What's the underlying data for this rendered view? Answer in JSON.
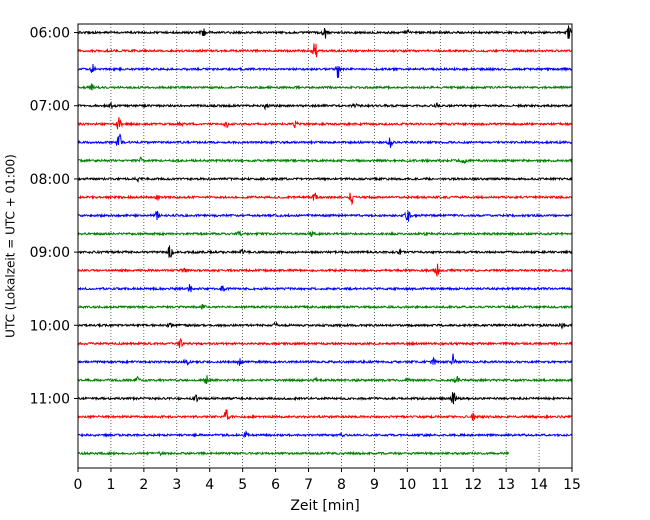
{
  "chart_data": {
    "type": "line",
    "title": "",
    "xlabel": "Zeit  [min]",
    "ylabel": "UTC (Lokalzeit = UTC + 01:00)",
    "xlim": [
      0,
      15
    ],
    "x_ticks": [
      "0",
      "1",
      "2",
      "3",
      "4",
      "5",
      "6",
      "7",
      "8",
      "9",
      "10",
      "11",
      "12",
      "13",
      "14",
      "15"
    ],
    "y_ticks": [
      "06:00",
      "07:00",
      "08:00",
      "09:00",
      "10:00",
      "11:00"
    ],
    "grid": {
      "x": true,
      "y": false
    },
    "row_minutes": 15,
    "start_time": "06:00",
    "colors": [
      "#000000",
      "#ff0000",
      "#0000ff",
      "#008000"
    ],
    "traces": [
      {
        "start": "06:00",
        "color": "#000000",
        "x_end": 15,
        "events": [
          {
            "x": 3.8,
            "amp": 4
          },
          {
            "x": 7.5,
            "amp": 6
          },
          {
            "x": 10.0,
            "amp": 2
          },
          {
            "x": 14.9,
            "amp": 7
          }
        ]
      },
      {
        "start": "06:15",
        "color": "#ff0000",
        "x_end": 15,
        "events": [
          {
            "x": 7.2,
            "amp": 9
          }
        ]
      },
      {
        "start": "06:30",
        "color": "#0000ff",
        "x_end": 15,
        "events": [
          {
            "x": 0.45,
            "amp": 5
          },
          {
            "x": 7.9,
            "amp": 9
          }
        ]
      },
      {
        "start": "06:45",
        "color": "#008000",
        "x_end": 15,
        "events": [
          {
            "x": 0.4,
            "amp": 4
          }
        ]
      },
      {
        "start": "07:00",
        "color": "#000000",
        "x_end": 15,
        "events": [
          {
            "x": 1.0,
            "amp": 3
          },
          {
            "x": 5.7,
            "amp": 4
          },
          {
            "x": 8.4,
            "amp": 3
          },
          {
            "x": 10.9,
            "amp": 2
          }
        ]
      },
      {
        "start": "07:15",
        "color": "#ff0000",
        "x_end": 15,
        "events": [
          {
            "x": 1.25,
            "amp": 9
          },
          {
            "x": 3.1,
            "amp": 3
          },
          {
            "x": 4.5,
            "amp": 4
          },
          {
            "x": 6.6,
            "amp": 3
          }
        ]
      },
      {
        "start": "07:30",
        "color": "#0000ff",
        "x_end": 15,
        "events": [
          {
            "x": 1.25,
            "amp": 11
          },
          {
            "x": 9.5,
            "amp": 6
          }
        ]
      },
      {
        "start": "07:45",
        "color": "#008000",
        "x_end": 15,
        "events": [
          {
            "x": 1.9,
            "amp": 3
          },
          {
            "x": 11.7,
            "amp": 3
          }
        ]
      },
      {
        "start": "08:00",
        "color": "#000000",
        "x_end": 15,
        "events": [
          {
            "x": 1.8,
            "amp": 4
          }
        ]
      },
      {
        "start": "08:15",
        "color": "#ff0000",
        "x_end": 15,
        "events": [
          {
            "x": 2.4,
            "amp": 3
          },
          {
            "x": 7.2,
            "amp": 5
          },
          {
            "x": 8.3,
            "amp": 8
          }
        ]
      },
      {
        "start": "08:30",
        "color": "#0000ff",
        "x_end": 15,
        "events": [
          {
            "x": 2.4,
            "amp": 4
          },
          {
            "x": 10.0,
            "amp": 9
          }
        ]
      },
      {
        "start": "08:45",
        "color": "#008000",
        "x_end": 15,
        "events": [
          {
            "x": 4.9,
            "amp": 2
          },
          {
            "x": 7.1,
            "amp": 2
          },
          {
            "x": 10.6,
            "amp": 2
          }
        ]
      },
      {
        "start": "09:00",
        "color": "#000000",
        "x_end": 15,
        "events": [
          {
            "x": 2.8,
            "amp": 9
          },
          {
            "x": 5.0,
            "amp": 2
          },
          {
            "x": 9.8,
            "amp": 2
          }
        ]
      },
      {
        "start": "09:15",
        "color": "#ff0000",
        "x_end": 15,
        "events": [
          {
            "x": 3.2,
            "amp": 2
          },
          {
            "x": 10.9,
            "amp": 7
          }
        ]
      },
      {
        "start": "09:30",
        "color": "#0000ff",
        "x_end": 15,
        "events": [
          {
            "x": 3.4,
            "amp": 4
          },
          {
            "x": 4.4,
            "amp": 3
          }
        ]
      },
      {
        "start": "09:45",
        "color": "#008000",
        "x_end": 15,
        "events": [
          {
            "x": 3.8,
            "amp": 2
          }
        ]
      },
      {
        "start": "10:00",
        "color": "#000000",
        "x_end": 15,
        "events": [
          {
            "x": 2.8,
            "amp": 3
          },
          {
            "x": 6.0,
            "amp": 2
          },
          {
            "x": 14.7,
            "amp": 2
          }
        ]
      },
      {
        "start": "10:15",
        "color": "#ff0000",
        "x_end": 15,
        "events": [
          {
            "x": 3.1,
            "amp": 4
          }
        ]
      },
      {
        "start": "10:30",
        "color": "#0000ff",
        "x_end": 15,
        "events": [
          {
            "x": 3.3,
            "amp": 3
          },
          {
            "x": 4.9,
            "amp": 3
          },
          {
            "x": 10.8,
            "amp": 3
          },
          {
            "x": 11.4,
            "amp": 9
          }
        ]
      },
      {
        "start": "10:45",
        "color": "#008000",
        "x_end": 15,
        "events": [
          {
            "x": 1.8,
            "amp": 3
          },
          {
            "x": 3.9,
            "amp": 5
          },
          {
            "x": 7.2,
            "amp": 2
          },
          {
            "x": 10.0,
            "amp": 3
          },
          {
            "x": 11.5,
            "amp": 5
          }
        ]
      },
      {
        "start": "11:00",
        "color": "#000000",
        "x_end": 15,
        "events": [
          {
            "x": 3.6,
            "amp": 5
          },
          {
            "x": 11.4,
            "amp": 7
          }
        ]
      },
      {
        "start": "11:15",
        "color": "#ff0000",
        "x_end": 15,
        "events": [
          {
            "x": 4.5,
            "amp": 10
          },
          {
            "x": 12.0,
            "amp": 3
          }
        ]
      },
      {
        "start": "11:30",
        "color": "#0000ff",
        "x_end": 15,
        "events": [
          {
            "x": 5.1,
            "amp": 3
          },
          {
            "x": 8.0,
            "amp": 2
          }
        ]
      },
      {
        "start": "11:45",
        "color": "#008000",
        "x_end": 13.1,
        "events": [
          {
            "x": 2.5,
            "amp": 3
          }
        ]
      }
    ]
  }
}
